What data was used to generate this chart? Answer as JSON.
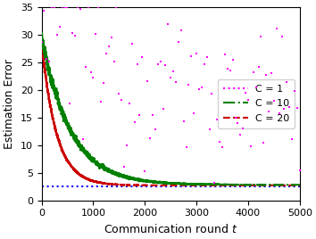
{
  "title": "",
  "xlabel": "Communication round $t$",
  "ylabel": "Estimation Error",
  "xlim": [
    0,
    5000
  ],
  "ylim": [
    0,
    35
  ],
  "yticks": [
    0,
    5,
    10,
    15,
    20,
    25,
    30,
    35
  ],
  "xticks": [
    0,
    1000,
    2000,
    3000,
    4000,
    5000
  ],
  "T": 5000,
  "seed": 12345,
  "color_C1": "#FF00FF",
  "color_C10": "#008000",
  "color_C20": "#CC0000",
  "color_blue": "#0000FF",
  "blue_level": 2.5,
  "legend_labels": [
    "C = 1",
    "C = 10",
    "C = 20"
  ],
  "figsize": [
    3.54,
    2.68
  ],
  "dpi": 100
}
